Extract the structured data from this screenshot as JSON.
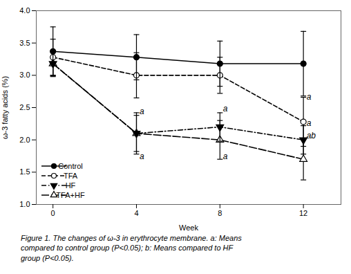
{
  "chart_data": {
    "type": "line",
    "x": [
      0,
      4,
      8,
      12
    ],
    "series": [
      {
        "name": "Control",
        "color": "#000000",
        "marker": "circle",
        "line_style": "solid",
        "values": [
          3.37,
          3.28,
          3.18,
          3.18
        ],
        "yerr": [
          0.38,
          0.35,
          0.35,
          0.5
        ]
      },
      {
        "name": "TFA",
        "color": "#000000",
        "marker": "circle-open",
        "line_style": "dashed",
        "values": [
          3.28,
          3.0,
          3.0,
          2.28
        ],
        "yerr": [
          0.28,
          0.35,
          0.28,
          0.38
        ]
      },
      {
        "name": "HF",
        "color": "#000000",
        "marker": "triangle-down",
        "line_style": "dashdot",
        "values": [
          3.18,
          2.1,
          2.2,
          2.0
        ],
        "yerr": [
          0.18,
          0.28,
          0.22,
          0.22
        ]
      },
      {
        "name": "TFA+HF",
        "color": "#000000",
        "marker": "triangle-up-open",
        "line_style": "longdash",
        "values": [
          3.18,
          2.1,
          2.0,
          1.7
        ],
        "yerr": [
          0.2,
          0.32,
          0.3,
          0.32
        ]
      }
    ],
    "xlim": [
      -0.8,
      13.8
    ],
    "xticks": [
      0,
      4,
      8,
      12
    ],
    "ylim": [
      1.0,
      4.0
    ],
    "yticks": [
      {
        "value": 1.0,
        "label": "1.0"
      },
      {
        "value": 1.5,
        "label": "1.5"
      },
      {
        "value": 2.0,
        "label": "2.0"
      },
      {
        "value": 2.5,
        "label": "2.5"
      },
      {
        "value": 3.0,
        "label": "3.0"
      },
      {
        "value": 3.5,
        "label": "3.5"
      },
      {
        "value": 4.0,
        "label": "4.0"
      }
    ],
    "xlabel": "Week",
    "ylabel": "ω-3 fatty acids (%)",
    "annotations": [
      {
        "text": "a",
        "x": 4.15,
        "y": 2.4
      },
      {
        "text": "a",
        "x": 4.15,
        "y": 1.7
      },
      {
        "text": "a",
        "x": 8.15,
        "y": 2.44
      },
      {
        "text": "a",
        "x": 8.15,
        "y": 1.7
      },
      {
        "text": "a",
        "x": 12.15,
        "y": 2.62
      },
      {
        "text": "a",
        "x": 12.15,
        "y": 2.22
      },
      {
        "text": "ab",
        "x": 12.15,
        "y": 2.02
      }
    ],
    "legend": "lower left",
    "caption": [
      "Figure 1. The changes of ω-3 in erythrocyte membrane. a: Means",
      "compared to control group (P<0.05); b: Means compared to HF",
      "group (P<0.05)."
    ]
  }
}
